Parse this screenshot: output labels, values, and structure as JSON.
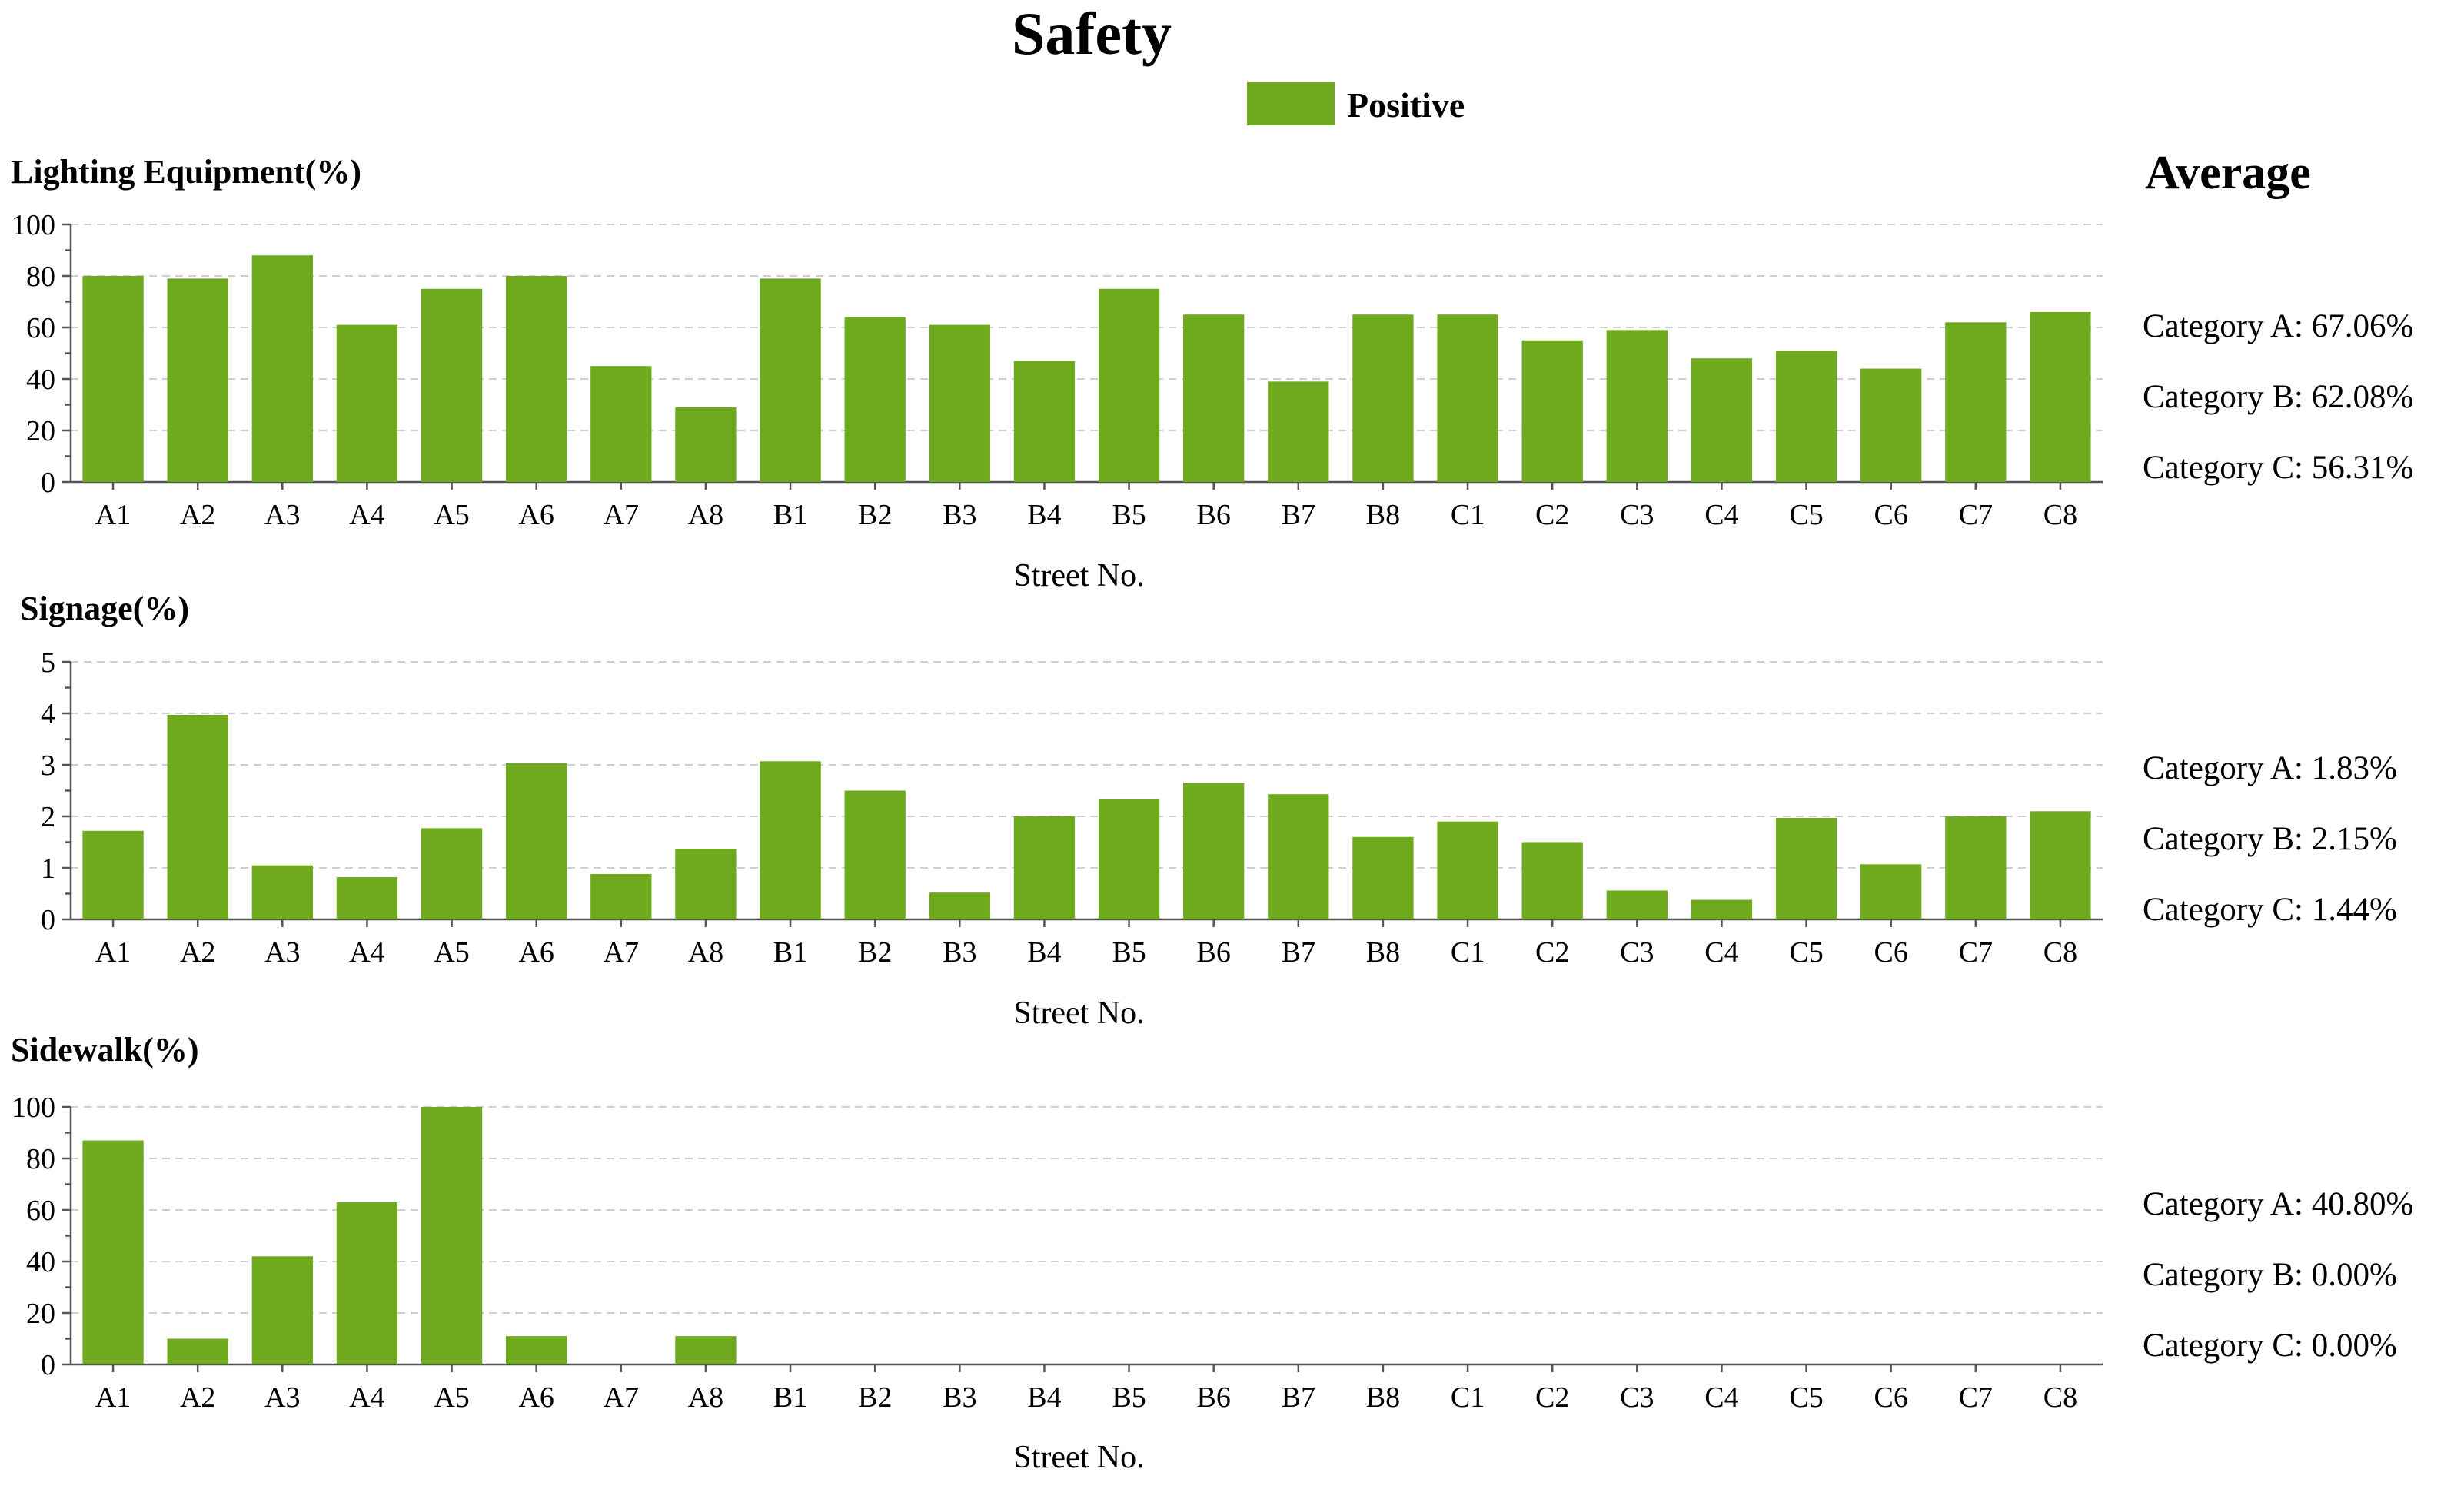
{
  "title": "Safety",
  "legend": {
    "label": "Positive",
    "color": "#6EA91E"
  },
  "average_heading": "Average",
  "bar_color": "#6EA91E",
  "chart_data": [
    {
      "type": "bar",
      "title": "Lighting Equipment(%)",
      "xlabel": "Street No.",
      "ylabel": "",
      "ylim": [
        0,
        100
      ],
      "yticks": [
        0,
        20,
        40,
        60,
        80,
        100
      ],
      "categories": [
        "A1",
        "A2",
        "A3",
        "A4",
        "A5",
        "A6",
        "A7",
        "A8",
        "B1",
        "B2",
        "B3",
        "B4",
        "B5",
        "B6",
        "B7",
        "B8",
        "C1",
        "C2",
        "C3",
        "C4",
        "C5",
        "C6",
        "C7",
        "C8"
      ],
      "values": [
        80,
        79,
        88,
        61,
        75,
        80,
        45,
        29,
        79,
        64,
        61,
        47,
        75,
        65,
        39,
        65,
        65,
        55,
        59,
        48,
        51,
        44,
        62,
        66
      ],
      "averages": [
        "Category A: 67.06%",
        "Category B: 62.08%",
        "Category C: 56.31%"
      ]
    },
    {
      "type": "bar",
      "title": "Signage(%)",
      "xlabel": "Street No.",
      "ylabel": "",
      "ylim": [
        0,
        5
      ],
      "yticks": [
        0,
        1,
        2,
        3,
        4,
        5
      ],
      "categories": [
        "A1",
        "A2",
        "A3",
        "A4",
        "A5",
        "A6",
        "A7",
        "A8",
        "B1",
        "B2",
        "B3",
        "B4",
        "B5",
        "B6",
        "B7",
        "B8",
        "C1",
        "C2",
        "C3",
        "C4",
        "C5",
        "C6",
        "C7",
        "C8"
      ],
      "values": [
        1.72,
        3.97,
        1.05,
        0.82,
        1.77,
        3.03,
        0.88,
        1.37,
        3.07,
        2.5,
        0.52,
        2.0,
        2.33,
        2.65,
        2.43,
        1.6,
        1.9,
        1.5,
        0.56,
        0.38,
        1.97,
        1.07,
        2.0,
        2.1
      ],
      "averages": [
        "Category A: 1.83%",
        "Category B: 2.15%",
        "Category C: 1.44%"
      ]
    },
    {
      "type": "bar",
      "title": "Sidewalk(%)",
      "xlabel": "Street No.",
      "ylabel": "",
      "ylim": [
        0,
        100
      ],
      "yticks": [
        0,
        20,
        40,
        60,
        80,
        100
      ],
      "categories": [
        "A1",
        "A2",
        "A3",
        "A4",
        "A5",
        "A6",
        "A7",
        "A8",
        "B1",
        "B2",
        "B3",
        "B4",
        "B5",
        "B6",
        "B7",
        "B8",
        "C1",
        "C2",
        "C3",
        "C4",
        "C5",
        "C6",
        "C7",
        "C8"
      ],
      "values": [
        87,
        10,
        42,
        63,
        100,
        11,
        0,
        11,
        0,
        0,
        0,
        0,
        0,
        0,
        0,
        0,
        0,
        0,
        0,
        0,
        0,
        0,
        0,
        0
      ],
      "averages": [
        "Category A: 40.80%",
        "Category B: 0.00%",
        "Category C: 0.00%"
      ]
    }
  ]
}
